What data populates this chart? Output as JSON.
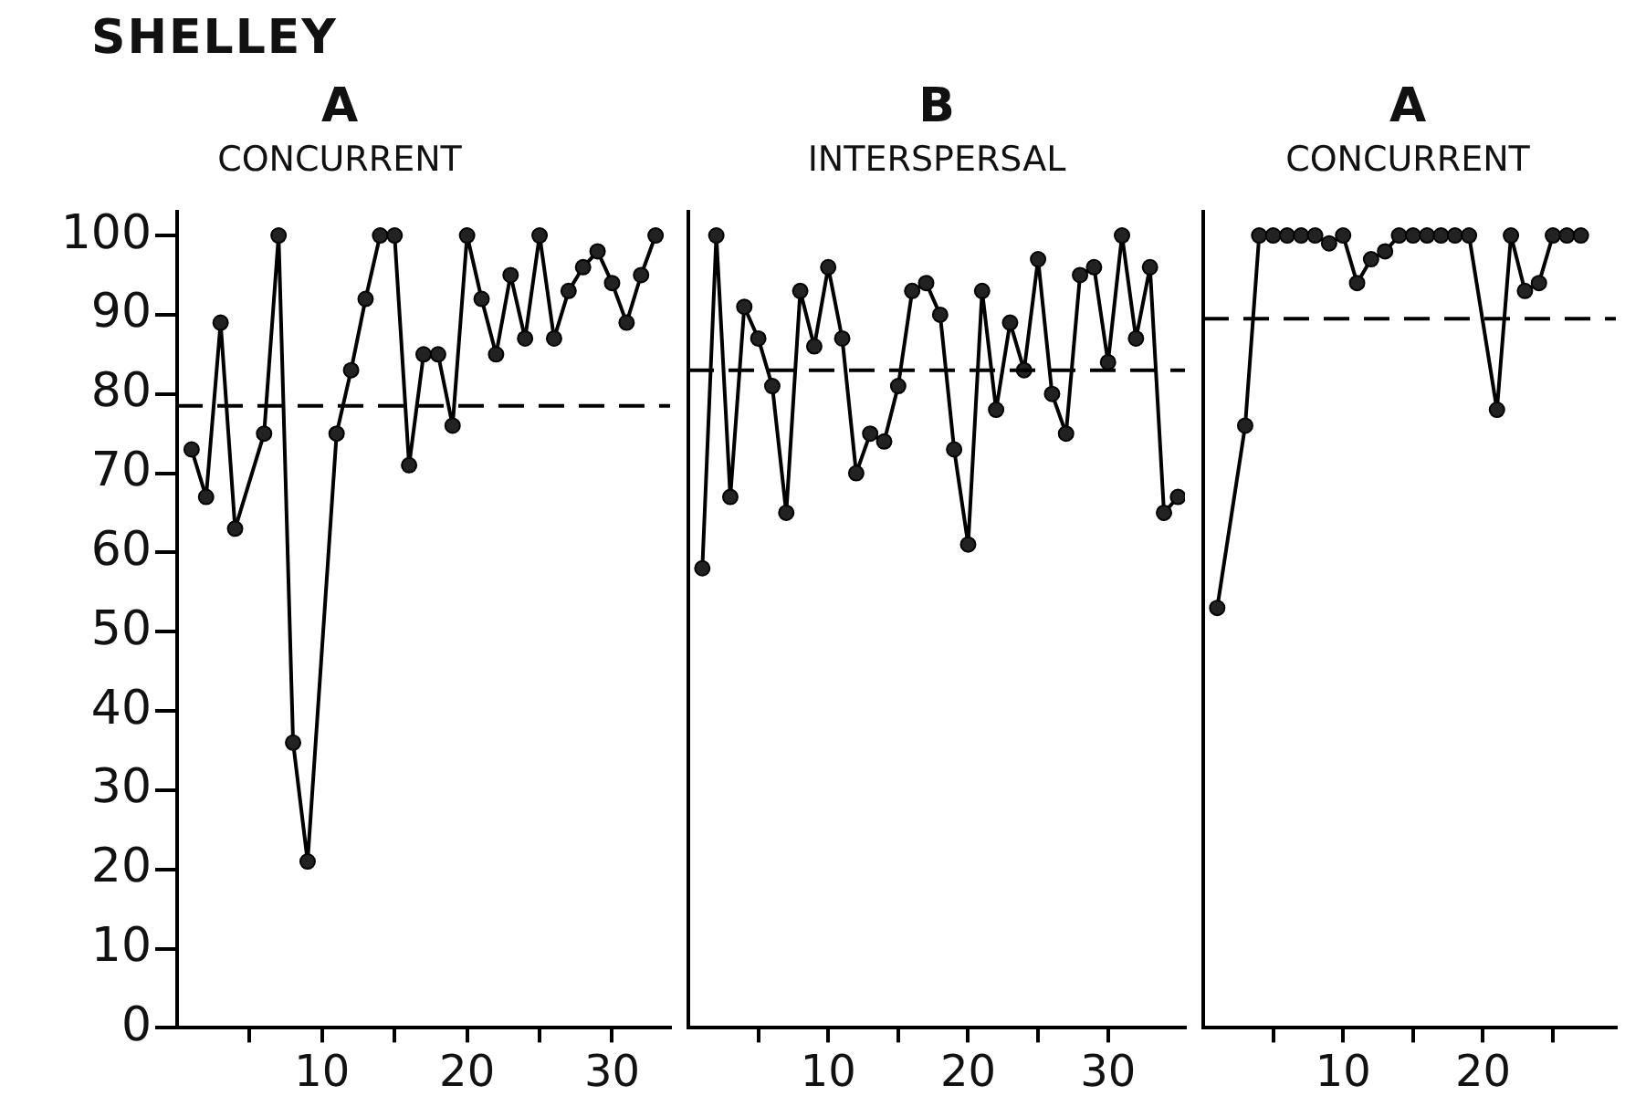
{
  "chart_data": [
    {
      "type": "line",
      "title": "A",
      "subtitle": "CONCURRENT",
      "annotations": [
        "SHELLEY"
      ],
      "marker": "circle",
      "tick_labels": true,
      "xlim": [
        0,
        34
      ],
      "xticks": [
        {
          "value": 5,
          "label": null
        },
        10,
        {
          "value": 15,
          "label": null
        },
        20,
        {
          "value": 25,
          "label": null
        },
        30
      ],
      "ylim": [
        0,
        103
      ],
      "yticks": [
        0,
        10,
        20,
        30,
        40,
        50,
        60,
        70,
        80,
        90,
        100
      ],
      "ref_lines": [
        {
          "axis": "y",
          "value": 78.5,
          "label": null,
          "color": "#000000",
          "line_style": "dashed"
        }
      ],
      "series": [
        {
          "color": "#222222",
          "x": [
            1,
            2,
            3,
            4,
            6,
            7,
            8,
            9,
            11,
            12,
            13,
            14,
            15,
            16,
            17,
            18,
            19,
            20,
            21,
            22,
            23,
            24,
            25,
            26,
            27,
            28,
            29,
            30,
            31,
            32,
            33
          ],
          "values": [
            73,
            67,
            89,
            63,
            75,
            100,
            36,
            21,
            75,
            83,
            92,
            100,
            100,
            71,
            85,
            85,
            76,
            100,
            92,
            85,
            95,
            87,
            100,
            87,
            93,
            96,
            98,
            94,
            89,
            95,
            100
          ]
        }
      ]
    },
    {
      "type": "line",
      "title": "B",
      "subtitle": "INTERSPERSAL",
      "marker": "circle",
      "tick_labels": "x",
      "xlim": [
        0,
        35.5
      ],
      "xticks": [
        {
          "value": 5,
          "label": null
        },
        10,
        {
          "value": 15,
          "label": null
        },
        20,
        {
          "value": 25,
          "label": null
        },
        30
      ],
      "ylim": [
        0,
        103
      ],
      "ref_lines": [
        {
          "axis": "y",
          "value": 83,
          "label": null,
          "color": "#000000",
          "line_style": "dashed"
        }
      ],
      "series": [
        {
          "color": "#222222",
          "x": [
            1,
            2,
            3,
            4,
            5,
            6,
            7,
            8,
            9,
            10,
            11,
            12,
            13,
            14,
            15,
            16,
            17,
            18,
            19,
            20,
            21,
            22,
            23,
            24,
            25,
            26,
            27,
            28,
            29,
            30,
            31,
            32,
            33,
            34,
            35
          ],
          "values": [
            58,
            100,
            67,
            91,
            87,
            81,
            65,
            93,
            86,
            96,
            87,
            70,
            75,
            74,
            81,
            93,
            94,
            90,
            73,
            61,
            93,
            78,
            89,
            83,
            97,
            80,
            75,
            95,
            96,
            84,
            100,
            87,
            96,
            65,
            67
          ]
        }
      ]
    },
    {
      "type": "line",
      "title": "A",
      "subtitle": "CONCURRENT",
      "marker": "circle",
      "tick_labels": "x",
      "xlim": [
        0,
        29.5
      ],
      "xticks": [
        {
          "value": 5,
          "label": null
        },
        10,
        {
          "value": 15,
          "label": null
        },
        20,
        {
          "value": 25,
          "label": null
        }
      ],
      "ylim": [
        0,
        103
      ],
      "ref_lines": [
        {
          "axis": "y",
          "value": 89.5,
          "label": null,
          "color": "#000000",
          "line_style": "dashed"
        }
      ],
      "series": [
        {
          "color": "#222222",
          "x": [
            1,
            3,
            4,
            5,
            6,
            7,
            8,
            9,
            10,
            11,
            12,
            13,
            14,
            15,
            16,
            17,
            18,
            19,
            21,
            22,
            23,
            24,
            25,
            26,
            27
          ],
          "values": [
            53,
            76,
            100,
            100,
            100,
            100,
            100,
            99,
            100,
            94,
            97,
            98,
            100,
            100,
            100,
            100,
            100,
            100,
            78,
            100,
            93,
            94,
            100,
            100,
            100
          ]
        }
      ]
    }
  ]
}
